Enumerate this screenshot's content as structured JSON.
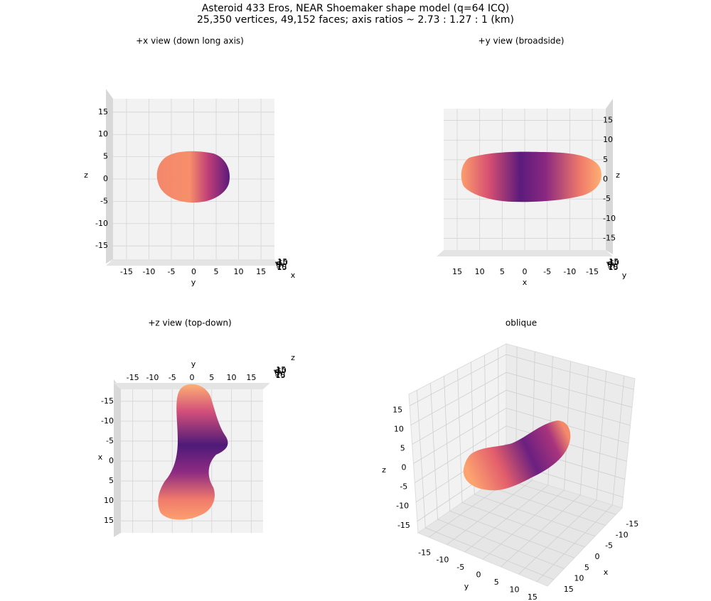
{
  "figure": {
    "title": "Asteroid 433 Eros, NEAR Shoemaker shape model (q=64 ICQ)",
    "subtitle": "25,350 vertices, 49,152 faces; axis ratios ~ 2.73 : 1.27 : 1 (km)"
  },
  "chart_data": [
    {
      "type": "mesh3d",
      "title": "+x view (down long axis)",
      "xlabel": "x",
      "ylabel": "y",
      "zlabel": "z",
      "xlim": [
        -18,
        18
      ],
      "ylim": [
        -18,
        18
      ],
      "zlim": [
        -18,
        18
      ],
      "xticks": [
        -15,
        -10,
        -5,
        0,
        5,
        10,
        15
      ],
      "yticks": [
        -15,
        -10,
        -5,
        0,
        5,
        10,
        15
      ],
      "zticks": [
        -15,
        -10,
        -5,
        0,
        5,
        10,
        15
      ],
      "grid": true
    },
    {
      "type": "mesh3d",
      "title": "+y view (broadside)",
      "xlabel": "x",
      "ylabel": "y",
      "zlabel": "z",
      "xlim": [
        -18,
        18
      ],
      "ylim": [
        -18,
        18
      ],
      "zlim": [
        -18,
        18
      ],
      "xticks": [
        -15,
        -10,
        -5,
        0,
        5,
        10,
        15
      ],
      "yticks": [
        -15,
        -10,
        -5,
        0,
        5,
        10,
        15
      ],
      "zticks": [
        -15,
        -10,
        -5,
        0,
        5,
        10,
        15
      ],
      "grid": true
    },
    {
      "type": "mesh3d",
      "title": "+z view (top-down)",
      "xlabel": "x",
      "ylabel": "y",
      "zlabel": "z",
      "xlim": [
        -18,
        18
      ],
      "ylim": [
        -18,
        18
      ],
      "zlim": [
        -18,
        18
      ],
      "xticks": [
        -15,
        -10,
        -5,
        0,
        5,
        10,
        15
      ],
      "yticks": [
        -15,
        -10,
        -5,
        0,
        5,
        10,
        15
      ],
      "zticks": [
        -15,
        -10,
        -5,
        0,
        5,
        10,
        15
      ],
      "grid": true
    },
    {
      "type": "mesh3d",
      "title": "oblique",
      "xlabel": "x",
      "ylabel": "y",
      "zlabel": "z",
      "xlim": [
        -18,
        18
      ],
      "ylim": [
        -18,
        18
      ],
      "zlim": [
        -18,
        18
      ],
      "xticks": [
        -15,
        -10,
        -5,
        0,
        5,
        10,
        15
      ],
      "yticks": [
        -15,
        -10,
        -5,
        0,
        5,
        10,
        15
      ],
      "zticks": [
        -15,
        -10,
        -5,
        0,
        5,
        10,
        15
      ],
      "grid": true
    }
  ]
}
